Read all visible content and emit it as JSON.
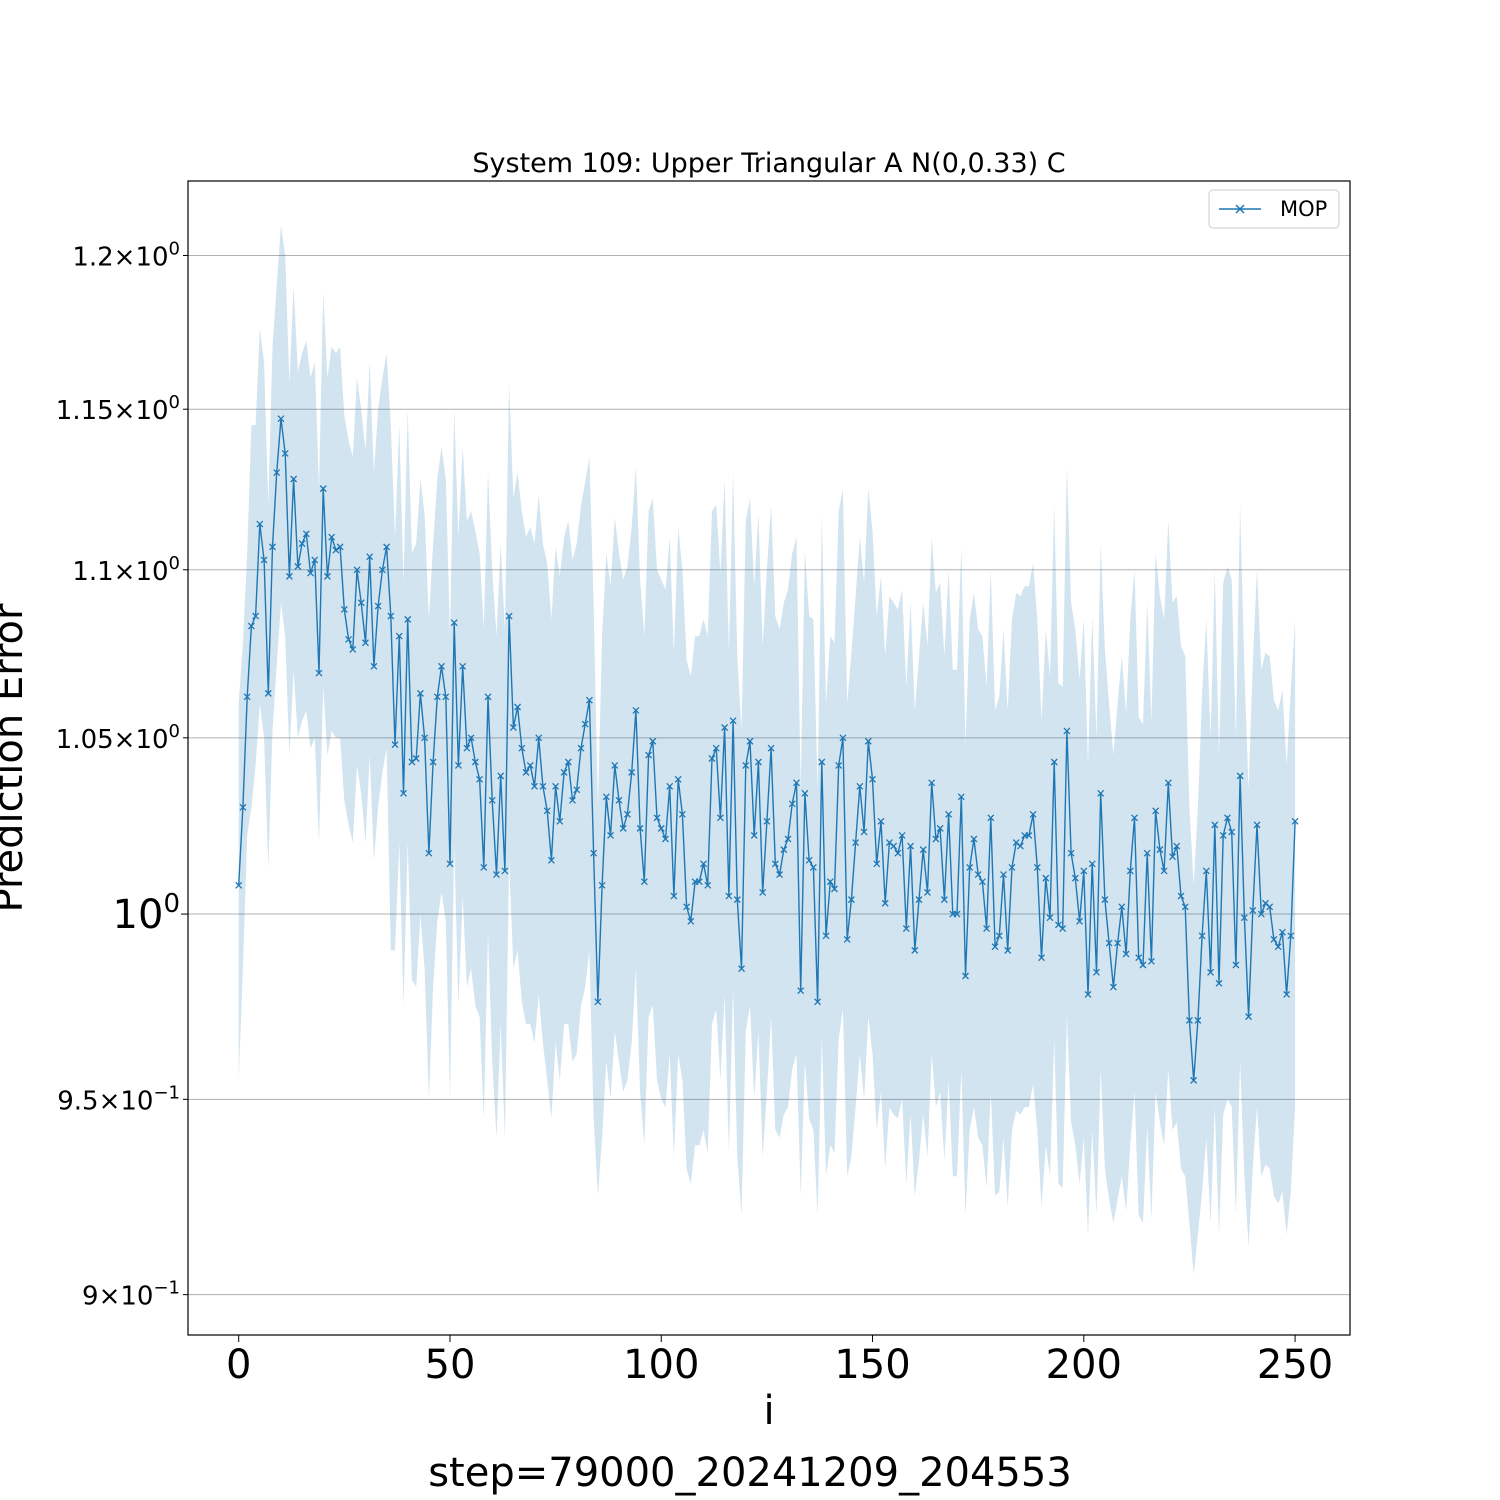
{
  "chart_data": {
    "type": "line",
    "title": "System 109: Upper Triangular A N(0,0.33) C",
    "xlabel": "i",
    "ylabel": "Prediction Error",
    "footer": "step=79000_20241209_204553",
    "yscale": "log",
    "xlim": [
      -12,
      263
    ],
    "ylim": [
      0.89,
      1.225
    ],
    "grid": "y-major",
    "legend": {
      "position": "top-right",
      "entries": [
        "MOP"
      ]
    },
    "x_ticks": [
      {
        "value": 0,
        "label": "0"
      },
      {
        "value": 50,
        "label": "50"
      },
      {
        "value": 100,
        "label": "100"
      },
      {
        "value": 150,
        "label": "150"
      },
      {
        "value": 200,
        "label": "200"
      },
      {
        "value": 250,
        "label": "250"
      }
    ],
    "y_ticks": [
      {
        "value": 0.9,
        "mantissa": "9",
        "exponent": "−1",
        "major": false
      },
      {
        "value": 0.95,
        "mantissa": "9.5",
        "exponent": "−1",
        "major": false
      },
      {
        "value": 1.0,
        "mantissa": "10",
        "exponent": "0",
        "major": true
      },
      {
        "value": 1.05,
        "mantissa": "1.05",
        "exponent": "0",
        "major": false
      },
      {
        "value": 1.1,
        "mantissa": "1.1",
        "exponent": "0",
        "major": false
      },
      {
        "value": 1.15,
        "mantissa": "1.15",
        "exponent": "0",
        "major": false
      },
      {
        "value": 1.2,
        "mantissa": "1.2",
        "exponent": "0",
        "major": false
      }
    ],
    "series": [
      {
        "name": "MOP",
        "color": "#1f77b4",
        "marker": "x",
        "band_color": "#1f77b4",
        "band_opacity": 0.2,
        "x_start": 0,
        "x_step": 1,
        "values": [
          1.008,
          1.03,
          1.062,
          1.083,
          1.086,
          1.114,
          1.103,
          1.063,
          1.107,
          1.13,
          1.147,
          1.136,
          1.098,
          1.128,
          1.101,
          1.108,
          1.111,
          1.099,
          1.103,
          1.069,
          1.125,
          1.098,
          1.11,
          1.106,
          1.107,
          1.088,
          1.079,
          1.076,
          1.1,
          1.09,
          1.078,
          1.104,
          1.071,
          1.089,
          1.1,
          1.107,
          1.086,
          1.048,
          1.08,
          1.034,
          1.085,
          1.043,
          1.044,
          1.063,
          1.05,
          1.017,
          1.043,
          1.062,
          1.071,
          1.062,
          1.014,
          1.084,
          1.042,
          1.071,
          1.047,
          1.05,
          1.043,
          1.038,
          1.013,
          1.062,
          1.032,
          1.011,
          1.039,
          1.012,
          1.086,
          1.053,
          1.059,
          1.047,
          1.04,
          1.042,
          1.036,
          1.05,
          1.036,
          1.029,
          1.015,
          1.036,
          1.026,
          1.04,
          1.043,
          1.032,
          1.035,
          1.047,
          1.054,
          1.061,
          1.017,
          0.976,
          1.008,
          1.033,
          1.022,
          1.042,
          1.032,
          1.024,
          1.028,
          1.04,
          1.058,
          1.024,
          1.009,
          1.045,
          1.049,
          1.027,
          1.024,
          1.021,
          1.036,
          1.005,
          1.038,
          1.028,
          1.002,
          0.998,
          1.009,
          1.009,
          1.014,
          1.008,
          1.044,
          1.047,
          1.027,
          1.053,
          1.005,
          1.055,
          1.004,
          0.985,
          1.042,
          1.049,
          1.022,
          1.043,
          1.006,
          1.026,
          1.047,
          1.014,
          1.011,
          1.018,
          1.021,
          1.031,
          1.037,
          0.979,
          1.034,
          1.015,
          1.013,
          0.976,
          1.043,
          0.994,
          1.009,
          1.007,
          1.042,
          1.05,
          0.993,
          1.004,
          1.02,
          1.036,
          1.023,
          1.049,
          1.038,
          1.014,
          1.026,
          1.003,
          1.02,
          1.019,
          1.017,
          1.022,
          0.996,
          1.019,
          0.99,
          1.004,
          1.018,
          1.006,
          1.037,
          1.021,
          1.024,
          1.004,
          1.028,
          1.0,
          1.0,
          1.033,
          0.983,
          1.013,
          1.021,
          1.011,
          1.009,
          0.996,
          1.027,
          0.991,
          0.994,
          1.011,
          0.99,
          1.013,
          1.02,
          1.019,
          1.022,
          1.022,
          1.028,
          1.013,
          0.988,
          1.01,
          0.999,
          1.043,
          0.997,
          0.996,
          1.052,
          1.017,
          1.01,
          0.998,
          1.012,
          0.978,
          1.014,
          0.984,
          1.034,
          1.004,
          0.992,
          0.98,
          0.992,
          1.002,
          0.989,
          1.012,
          1.027,
          0.988,
          0.986,
          1.017,
          0.987,
          1.029,
          1.018,
          1.012,
          1.037,
          1.016,
          1.019,
          1.005,
          1.002,
          0.971,
          0.955,
          0.971,
          0.994,
          1.012,
          0.984,
          1.025,
          0.981,
          1.022,
          1.027,
          1.023,
          0.986,
          1.039,
          0.999,
          0.972,
          1.001,
          1.025,
          1.0,
          1.003,
          1.002,
          0.993,
          0.991,
          0.995,
          0.978,
          0.994,
          1.026
        ],
        "lower": [
          0.955,
          0.985,
          1.022,
          1.03,
          1.042,
          1.06,
          1.05,
          1.013,
          1.052,
          1.071,
          1.09,
          1.08,
          1.045,
          1.07,
          1.05,
          1.055,
          1.058,
          1.047,
          1.05,
          1.02,
          1.065,
          1.045,
          1.052,
          1.05,
          1.05,
          1.032,
          1.025,
          1.02,
          1.042,
          1.034,
          1.02,
          1.045,
          1.015,
          1.03,
          1.04,
          1.047,
          0.99,
          0.99,
          1.02,
          0.975,
          1.02,
          0.982,
          0.98,
          1.0,
          0.985,
          0.95,
          0.98,
          0.998,
          1.006,
          0.998,
          0.95,
          1.02,
          0.975,
          1.005,
          0.98,
          0.985,
          0.975,
          0.972,
          0.945,
          0.995,
          0.96,
          0.94,
          0.97,
          0.94,
          1.015,
          0.985,
          0.99,
          0.976,
          0.97,
          0.97,
          0.965,
          0.978,
          0.965,
          0.955,
          0.945,
          0.965,
          0.955,
          0.97,
          0.97,
          0.96,
          0.962,
          0.975,
          0.98,
          0.99,
          0.945,
          0.925,
          0.94,
          0.96,
          0.95,
          0.968,
          0.96,
          0.952,
          0.955,
          0.965,
          0.985,
          0.952,
          0.938,
          0.972,
          0.975,
          0.955,
          0.95,
          0.948,
          0.962,
          0.935,
          0.962,
          0.955,
          0.932,
          0.928,
          0.938,
          0.938,
          0.942,
          0.936,
          0.97,
          0.974,
          0.955,
          0.978,
          0.936,
          0.98,
          0.935,
          0.92,
          0.968,
          0.975,
          0.95,
          0.968,
          0.935,
          0.952,
          0.972,
          0.942,
          0.94,
          0.946,
          0.948,
          0.958,
          0.962,
          0.925,
          0.96,
          0.945,
          0.942,
          0.92,
          0.967,
          0.93,
          0.938,
          0.936,
          0.966,
          0.974,
          0.93,
          0.935,
          0.948,
          0.962,
          0.95,
          0.972,
          0.962,
          0.942,
          0.952,
          0.932,
          0.948,
          0.946,
          0.945,
          0.95,
          0.928,
          0.946,
          0.925,
          0.934,
          0.946,
          0.935,
          0.962,
          0.948,
          0.952,
          0.934,
          0.955,
          0.93,
          0.93,
          0.958,
          0.92,
          0.942,
          0.948,
          0.94,
          0.938,
          0.927,
          0.952,
          0.925,
          0.926,
          0.94,
          0.922,
          0.942,
          0.947,
          0.946,
          0.948,
          0.948,
          0.954,
          0.942,
          0.922,
          0.938,
          0.93,
          0.966,
          0.928,
          0.927,
          0.972,
          0.944,
          0.938,
          0.928,
          0.94,
          0.915,
          0.942,
          0.92,
          0.958,
          0.932,
          0.924,
          0.918,
          0.924,
          0.93,
          0.921,
          0.938,
          0.952,
          0.92,
          0.918,
          0.943,
          0.919,
          0.952,
          0.944,
          0.938,
          0.958,
          0.942,
          0.944,
          0.932,
          0.93,
          0.918,
          0.905,
          0.915,
          0.926,
          0.94,
          0.918,
          0.948,
          0.915,
          0.946,
          0.95,
          0.948,
          0.92,
          0.96,
          0.93,
          0.912,
          0.932,
          0.948,
          0.93,
          0.933,
          0.932,
          0.925,
          0.923,
          0.926,
          0.915,
          0.926,
          0.948
        ],
        "upper": [
          1.06,
          1.078,
          1.105,
          1.145,
          1.145,
          1.176,
          1.165,
          1.12,
          1.17,
          1.19,
          1.21,
          1.2,
          1.158,
          1.19,
          1.162,
          1.168,
          1.172,
          1.16,
          1.165,
          1.125,
          1.188,
          1.16,
          1.17,
          1.168,
          1.17,
          1.148,
          1.14,
          1.135,
          1.16,
          1.15,
          1.137,
          1.165,
          1.13,
          1.15,
          1.16,
          1.168,
          1.145,
          1.11,
          1.145,
          1.096,
          1.15,
          1.105,
          1.108,
          1.128,
          1.117,
          1.085,
          1.108,
          1.128,
          1.138,
          1.128,
          1.08,
          1.15,
          1.11,
          1.138,
          1.115,
          1.118,
          1.112,
          1.105,
          1.082,
          1.13,
          1.1,
          1.08,
          1.108,
          1.082,
          1.158,
          1.122,
          1.13,
          1.118,
          1.11,
          1.113,
          1.108,
          1.123,
          1.108,
          1.102,
          1.085,
          1.107,
          1.098,
          1.11,
          1.115,
          1.103,
          1.108,
          1.12,
          1.127,
          1.135,
          1.09,
          1.03,
          1.08,
          1.105,
          1.095,
          1.116,
          1.105,
          1.097,
          1.101,
          1.113,
          1.132,
          1.097,
          1.08,
          1.118,
          1.122,
          1.1,
          1.097,
          1.094,
          1.11,
          1.075,
          1.113,
          1.1,
          1.073,
          1.068,
          1.08,
          1.08,
          1.085,
          1.08,
          1.118,
          1.12,
          1.099,
          1.128,
          1.075,
          1.13,
          1.074,
          1.052,
          1.115,
          1.122,
          1.095,
          1.117,
          1.077,
          1.1,
          1.12,
          1.086,
          1.082,
          1.09,
          1.094,
          1.105,
          1.11,
          1.035,
          1.106,
          1.086,
          1.085,
          1.035,
          1.117,
          1.06,
          1.08,
          1.078,
          1.118,
          1.125,
          1.06,
          1.075,
          1.092,
          1.11,
          1.096,
          1.125,
          1.112,
          1.086,
          1.098,
          1.074,
          1.092,
          1.09,
          1.088,
          1.094,
          1.065,
          1.09,
          1.058,
          1.074,
          1.09,
          1.077,
          1.11,
          1.093,
          1.096,
          1.074,
          1.1,
          1.07,
          1.07,
          1.107,
          1.048,
          1.085,
          1.093,
          1.082,
          1.08,
          1.065,
          1.1,
          1.058,
          1.062,
          1.082,
          1.058,
          1.085,
          1.093,
          1.092,
          1.095,
          1.095,
          1.102,
          1.085,
          1.055,
          1.082,
          1.068,
          1.12,
          1.066,
          1.065,
          1.132,
          1.09,
          1.082,
          1.067,
          1.085,
          1.042,
          1.086,
          1.05,
          1.108,
          1.076,
          1.06,
          1.045,
          1.06,
          1.074,
          1.057,
          1.085,
          1.1,
          1.056,
          1.054,
          1.09,
          1.055,
          1.105,
          1.092,
          1.085,
          1.115,
          1.09,
          1.092,
          1.077,
          1.074,
          1.03,
          1.008,
          1.03,
          1.063,
          1.085,
          1.05,
          1.1,
          1.045,
          1.096,
          1.101,
          1.097,
          1.05,
          1.12,
          1.07,
          1.035,
          1.072,
          1.1,
          1.07,
          1.075,
          1.074,
          1.061,
          1.058,
          1.064,
          1.042,
          1.064,
          1.085
        ]
      }
    ]
  }
}
